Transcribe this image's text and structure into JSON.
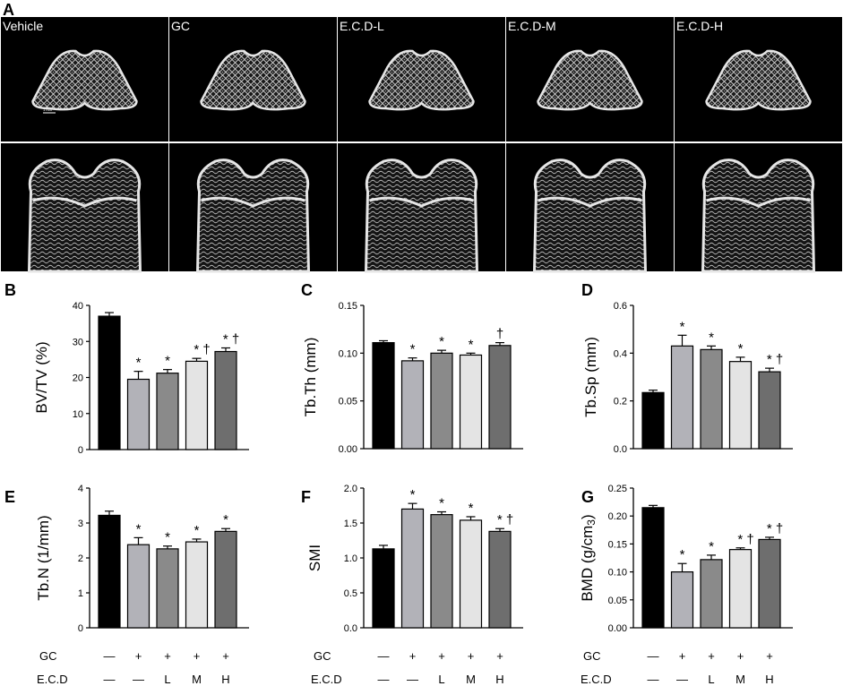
{
  "panel_a": {
    "letter": "A",
    "labels": [
      "Vehicle",
      "GC",
      "E.C.D-L",
      "E.C.D-M",
      "E.C.D-H"
    ],
    "scale_bar": "1 mm"
  },
  "group_rows": {
    "gc_label": "GC",
    "ecd_label": "E.C.D",
    "gc_values": [
      "—",
      "+",
      "+",
      "+",
      "+"
    ],
    "ecd_values": [
      "—",
      "—",
      "L",
      "M",
      "H"
    ]
  },
  "chart_data": [
    {
      "panel": "B",
      "type": "bar",
      "ylabel": "BV/TV (%)",
      "ylim": [
        0,
        40
      ],
      "yticks": [
        "0",
        "10",
        "20",
        "30",
        "40"
      ],
      "categories": [
        "Vehicle",
        "GC",
        "E.C.D-L",
        "E.C.D-M",
        "E.C.D-H"
      ],
      "values": [
        37,
        19.5,
        21.2,
        24.5,
        27.2
      ],
      "errors": [
        1.0,
        2.2,
        1.0,
        0.8,
        1.0
      ],
      "significance": [
        "",
        "*",
        "*",
        "* †",
        "* †"
      ]
    },
    {
      "panel": "C",
      "type": "bar",
      "ylabel": "Tb.Th (mm)",
      "ylim": [
        0,
        0.15
      ],
      "yticks": [
        "0.00",
        "0.05",
        "0.10",
        "0.15"
      ],
      "categories": [
        "Vehicle",
        "GC",
        "E.C.D-L",
        "E.C.D-M",
        "E.C.D-H"
      ],
      "values": [
        0.111,
        0.092,
        0.1,
        0.098,
        0.108
      ],
      "errors": [
        0.002,
        0.003,
        0.003,
        0.002,
        0.003
      ],
      "significance": [
        "",
        "*",
        "*",
        "*",
        "†"
      ]
    },
    {
      "panel": "D",
      "type": "bar",
      "ylabel": "Tb.Sp (mm)",
      "ylim": [
        0,
        0.6
      ],
      "yticks": [
        "0.0",
        "0.2",
        "0.4",
        "0.6"
      ],
      "categories": [
        "Vehicle",
        "GC",
        "E.C.D-L",
        "E.C.D-M",
        "E.C.D-H"
      ],
      "values": [
        0.235,
        0.43,
        0.415,
        0.365,
        0.322
      ],
      "errors": [
        0.01,
        0.045,
        0.015,
        0.018,
        0.015
      ],
      "significance": [
        "",
        "*",
        "*",
        "*",
        "* †"
      ]
    },
    {
      "panel": "E",
      "type": "bar",
      "ylabel": "Tb.N (1/mm)",
      "ylim": [
        0,
        4
      ],
      "yticks": [
        "0",
        "1",
        "2",
        "3",
        "4"
      ],
      "categories": [
        "Vehicle",
        "GC",
        "E.C.D-L",
        "E.C.D-M",
        "E.C.D-H"
      ],
      "values": [
        3.22,
        2.38,
        2.26,
        2.46,
        2.76
      ],
      "errors": [
        0.12,
        0.2,
        0.08,
        0.08,
        0.08
      ],
      "significance": [
        "",
        "*",
        "*",
        "*",
        "*"
      ]
    },
    {
      "panel": "F",
      "type": "bar",
      "ylabel": "SMI",
      "ylim": [
        0,
        2.0
      ],
      "yticks": [
        "0.0",
        "0.5",
        "1.0",
        "1.5",
        "2.0"
      ],
      "categories": [
        "Vehicle",
        "GC",
        "E.C.D-L",
        "E.C.D-M",
        "E.C.D-H"
      ],
      "values": [
        1.13,
        1.7,
        1.62,
        1.54,
        1.38
      ],
      "errors": [
        0.05,
        0.08,
        0.04,
        0.05,
        0.04
      ],
      "significance": [
        "",
        "*",
        "*",
        "*",
        "* †"
      ]
    },
    {
      "panel": "G",
      "type": "bar",
      "ylabel": "BMD (g/cm3)",
      "ylim": [
        0,
        0.25
      ],
      "yticks": [
        "0.00",
        "0.05",
        "0.10",
        "0.15",
        "0.20",
        "0.25"
      ],
      "categories": [
        "Vehicle",
        "GC",
        "E.C.D-L",
        "E.C.D-M",
        "E.C.D-H"
      ],
      "values": [
        0.215,
        0.1,
        0.122,
        0.14,
        0.158
      ],
      "errors": [
        0.004,
        0.015,
        0.008,
        0.003,
        0.004
      ],
      "significance": [
        "",
        "*",
        "*",
        "* †",
        "* †"
      ]
    }
  ],
  "colors": {
    "bar_fills": [
      "#000000",
      "#b2b2b8",
      "#8a8a8a",
      "#e4e4e4",
      "#6e6e6e"
    ],
    "image_background": "#000000",
    "bone": "#e6e6e6"
  }
}
